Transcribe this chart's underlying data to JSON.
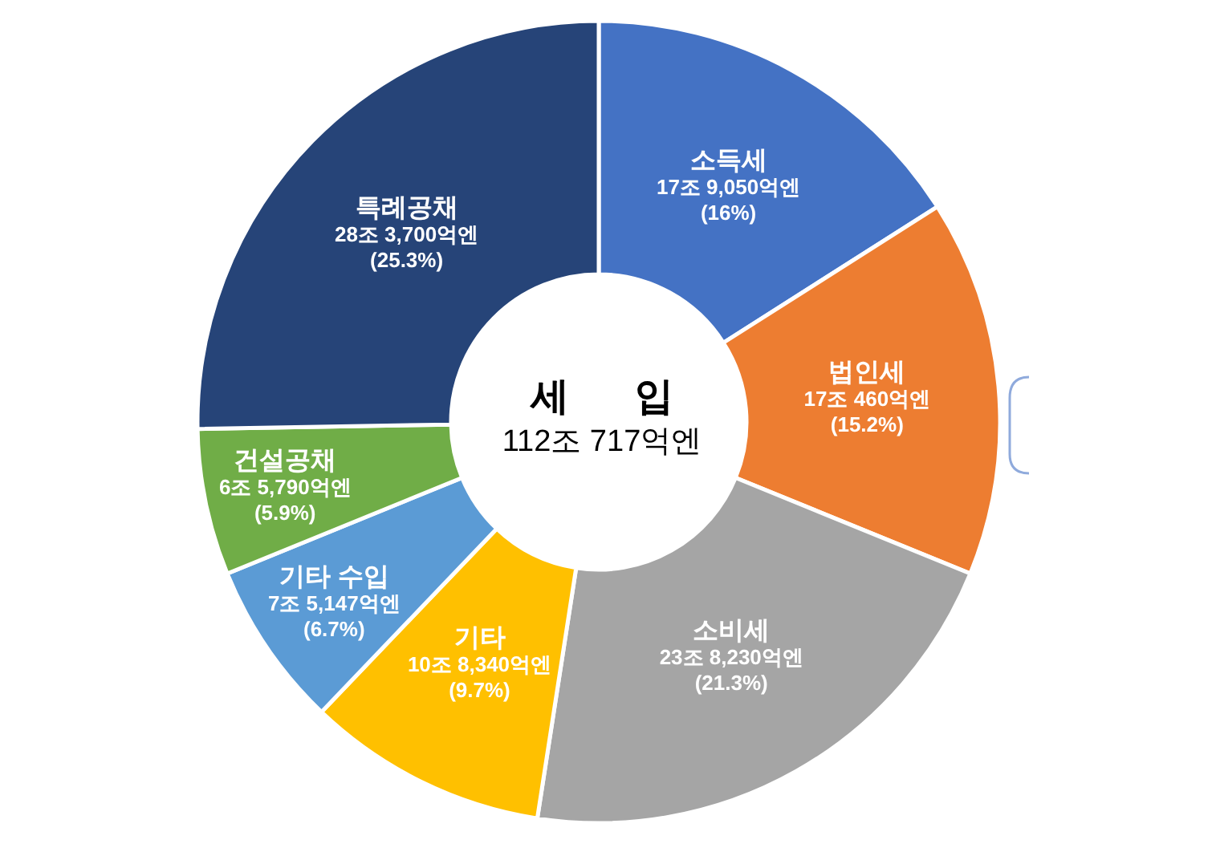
{
  "chart_data": {
    "type": "donut",
    "title": "세 입",
    "subtitle": "112조 717억엔",
    "categories": [
      "소득세",
      "법인세",
      "소비세",
      "기타",
      "기타 수입",
      "건설공채",
      "특례공채"
    ],
    "values": [
      16,
      15.2,
      21.3,
      9.7,
      6.7,
      5.9,
      25.3
    ],
    "colors": [
      "#4472c4",
      "#ed7d31",
      "#a5a5a5",
      "#ffc000",
      "#5b9bd5",
      "#70ad47",
      "#264478"
    ],
    "value_labels": [
      "17조 9,050억엔\n(16%)",
      "17조 460억엔\n(15.2%)",
      "23조 8,230억엔\n(21.3%)",
      "10조 8,340억엔\n(9.7%)",
      "7조 5,147억엔\n(6.7%)",
      "6조 5,790억엔\n(5.9%)",
      "28조 3,700억엔\n(25.3%)"
    ]
  }
}
